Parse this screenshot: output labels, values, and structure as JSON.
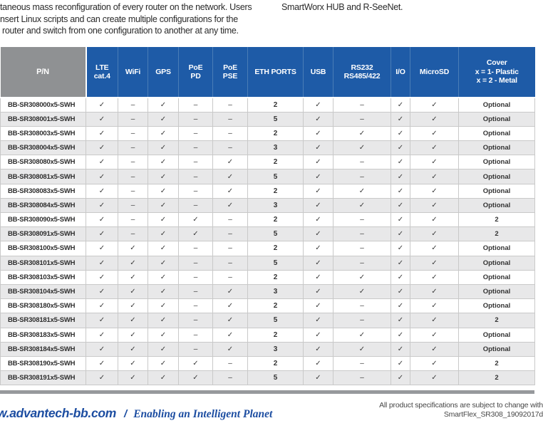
{
  "intro": {
    "left_line1": "taneous mass reconfiguration of every router on the network. Users",
    "left_line2": "nsert Linux scripts and can create multiple configurations for the",
    "left_line3": "router and switch from one configuration to another at any time.",
    "right_line": "SmartWorx HUB and R-SeeNet."
  },
  "table": {
    "headers": [
      "P/N",
      "LTE\ncat.4",
      "WiFi",
      "GPS",
      "PoE\nPD",
      "PoE\nPSE",
      "ETH PORTS",
      "USB",
      "RS232\nRS485/422",
      "I/O",
      "MicroSD",
      "Cover\nx = 1- Plastic\nx = 2 - Metal"
    ],
    "rows": [
      [
        "BB-SR308000x5-SWH",
        "✓",
        "–",
        "✓",
        "–",
        "–",
        "2",
        "✓",
        "–",
        "✓",
        "✓",
        "Optional"
      ],
      [
        "BB-SR308001x5-SWH",
        "✓",
        "–",
        "✓",
        "–",
        "–",
        "5",
        "✓",
        "–",
        "✓",
        "✓",
        "Optional"
      ],
      [
        "BB-SR308003x5-SWH",
        "✓",
        "–",
        "✓",
        "–",
        "–",
        "2",
        "✓",
        "✓",
        "✓",
        "✓",
        "Optional"
      ],
      [
        "BB-SR308004x5-SWH",
        "✓",
        "–",
        "✓",
        "–",
        "–",
        "3",
        "✓",
        "✓",
        "✓",
        "✓",
        "Optional"
      ],
      [
        "BB-SR308080x5-SWH",
        "✓",
        "–",
        "✓",
        "–",
        "✓",
        "2",
        "✓",
        "–",
        "✓",
        "✓",
        "Optional"
      ],
      [
        "BB-SR308081x5-SWH",
        "✓",
        "–",
        "✓",
        "–",
        "✓",
        "5",
        "✓",
        "–",
        "✓",
        "✓",
        "Optional"
      ],
      [
        "BB-SR308083x5-SWH",
        "✓",
        "–",
        "✓",
        "–",
        "✓",
        "2",
        "✓",
        "✓",
        "✓",
        "✓",
        "Optional"
      ],
      [
        "BB-SR308084x5-SWH",
        "✓",
        "–",
        "✓",
        "–",
        "✓",
        "3",
        "✓",
        "✓",
        "✓",
        "✓",
        "Optional"
      ],
      [
        "BB-SR308090x5-SWH",
        "✓",
        "–",
        "✓",
        "✓",
        "–",
        "2",
        "✓",
        "–",
        "✓",
        "✓",
        "2"
      ],
      [
        "BB-SR308091x5-SWH",
        "✓",
        "–",
        "✓",
        "✓",
        "–",
        "5",
        "✓",
        "–",
        "✓",
        "✓",
        "2"
      ],
      [
        "BB-SR308100x5-SWH",
        "✓",
        "✓",
        "✓",
        "–",
        "–",
        "2",
        "✓",
        "–",
        "✓",
        "✓",
        "Optional"
      ],
      [
        "BB-SR308101x5-SWH",
        "✓",
        "✓",
        "✓",
        "–",
        "–",
        "5",
        "✓",
        "–",
        "✓",
        "✓",
        "Optional"
      ],
      [
        "BB-SR308103x5-SWH",
        "✓",
        "✓",
        "✓",
        "–",
        "–",
        "2",
        "✓",
        "✓",
        "✓",
        "✓",
        "Optional"
      ],
      [
        "BB-SR308104x5-SWH",
        "✓",
        "✓",
        "✓",
        "–",
        "✓",
        "3",
        "✓",
        "✓",
        "✓",
        "✓",
        "Optional"
      ],
      [
        "BB-SR308180x5-SWH",
        "✓",
        "✓",
        "✓",
        "–",
        "✓",
        "2",
        "✓",
        "–",
        "✓",
        "✓",
        "Optional"
      ],
      [
        "BB-SR308181x5-SWH",
        "✓",
        "✓",
        "✓",
        "–",
        "✓",
        "5",
        "✓",
        "–",
        "✓",
        "✓",
        "2"
      ],
      [
        "BB-SR308183x5-SWH",
        "✓",
        "✓",
        "✓",
        "–",
        "✓",
        "2",
        "✓",
        "✓",
        "✓",
        "✓",
        "Optional"
      ],
      [
        "BB-SR308184x5-SWH",
        "✓",
        "✓",
        "✓",
        "–",
        "✓",
        "3",
        "✓",
        "✓",
        "✓",
        "✓",
        "Optional"
      ],
      [
        "BB-SR308190x5-SWH",
        "✓",
        "✓",
        "✓",
        "✓",
        "–",
        "2",
        "✓",
        "–",
        "✓",
        "✓",
        "2"
      ],
      [
        "BB-SR308191x5-SWH",
        "✓",
        "✓",
        "✓",
        "✓",
        "–",
        "5",
        "✓",
        "–",
        "✓",
        "✓",
        "2"
      ]
    ]
  },
  "footer": {
    "website": "w.advantech-bb.com",
    "separator": "/",
    "tagline": "Enabling an Intelligent Planet",
    "note_line1": "All product specifications are subject to change with",
    "note_line2": "SmartFlex_SR308_19092017d"
  },
  "colors": {
    "header_blue": "#1e5ba7",
    "pn_header_gray": "#8f9193",
    "row_alt_gray": "#e8e8e9",
    "footer_blue": "#1c4da1",
    "divider_gray": "#97999c"
  }
}
